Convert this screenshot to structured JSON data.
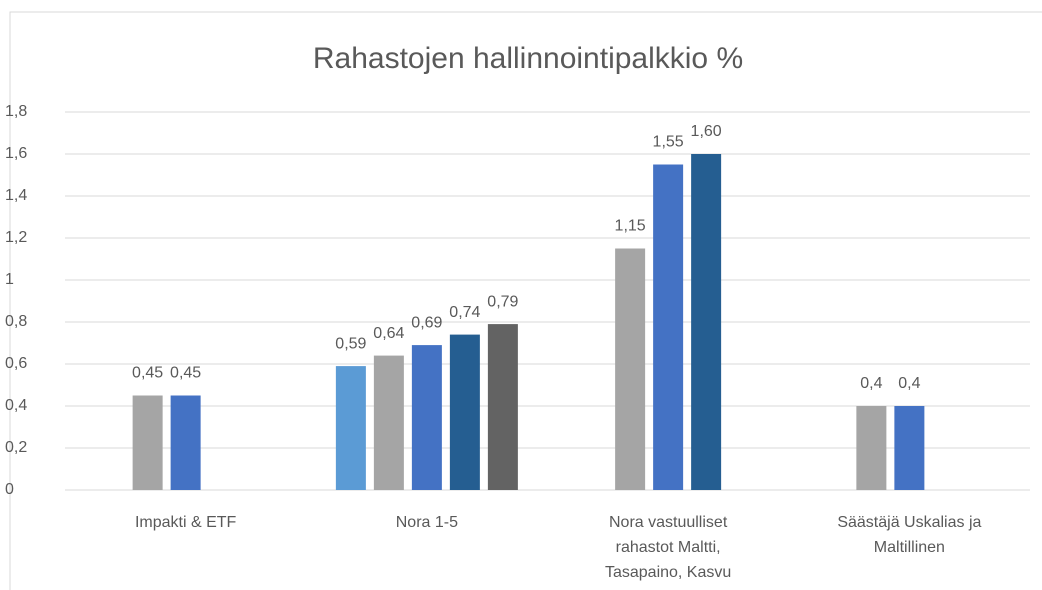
{
  "chart_data": {
    "type": "bar",
    "title": "Rahastojen hallinnointipalkkio %",
    "categories": [
      "Impakti & ETF",
      "Nora 1-5",
      "Nora vastuulliset rahastot Maltti, Tasapaino, Kasvu",
      "Säästäjä Uskalias ja Maltillinen"
    ],
    "series": [
      {
        "color": "#5b9bd5",
        "values": [
          null,
          0.59,
          null,
          null
        ],
        "value_labels": [
          null,
          "0,59",
          null,
          null
        ]
      },
      {
        "color": "#a5a5a5",
        "values": [
          0.45,
          0.64,
          1.15,
          0.4
        ],
        "value_labels": [
          "0,45",
          "0,64",
          "1,15",
          "0,4"
        ]
      },
      {
        "color": "#4472c4",
        "values": [
          0.45,
          0.69,
          1.55,
          0.4
        ],
        "value_labels": [
          "0,45",
          "0,69",
          "1,55",
          "0,4"
        ]
      },
      {
        "color": "#255e91",
        "values": [
          null,
          0.74,
          1.6,
          null
        ],
        "value_labels": [
          null,
          "0,74",
          "1,60",
          null
        ]
      },
      {
        "color": "#636363",
        "values": [
          null,
          0.79,
          null,
          null
        ],
        "value_labels": [
          null,
          "0,79",
          null,
          null
        ]
      }
    ],
    "ylim": [
      0,
      1.8
    ],
    "yticks": [
      0,
      {
        "value": 0.2,
        "label": "0,2"
      },
      {
        "value": 0.4,
        "label": "0,4"
      },
      {
        "value": 0.6,
        "label": "0,6"
      },
      {
        "value": 0.8,
        "label": "0,8"
      },
      1,
      {
        "value": 1.2,
        "label": "1,2"
      },
      {
        "value": 1.4,
        "label": "1,4"
      },
      {
        "value": 1.6,
        "label": "1,6"
      },
      {
        "value": 1.8,
        "label": "1,8"
      }
    ],
    "grid": true
  }
}
